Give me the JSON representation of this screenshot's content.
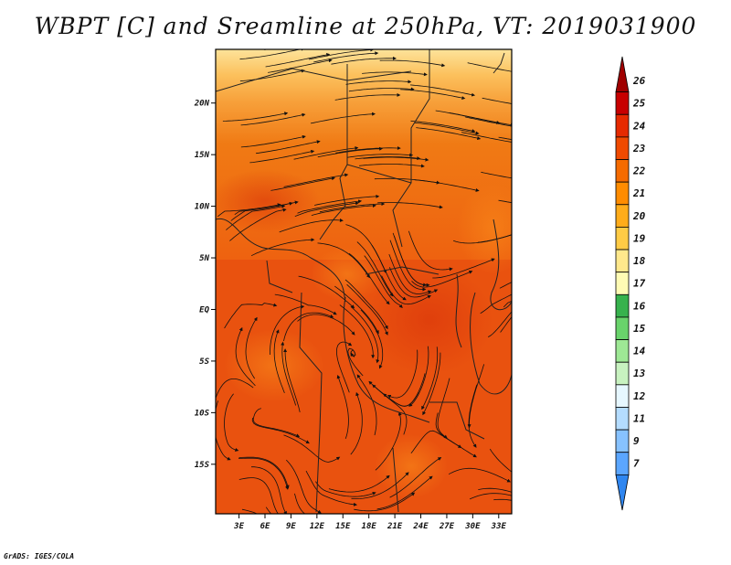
{
  "chart_data": {
    "type": "heatmap",
    "title": "WBPT [C] and Sreamline at 250hPa, VT: 2019031900",
    "variable": "WBPT [C]",
    "level": "250hPa",
    "valid_time": "2019031900",
    "overlay": "streamlines",
    "x_ticks": [
      "3E",
      "6E",
      "9E",
      "12E",
      "15E",
      "18E",
      "21E",
      "24E",
      "27E",
      "30E",
      "33E"
    ],
    "x_tick_values": [
      3,
      6,
      9,
      12,
      15,
      18,
      21,
      24,
      27,
      30,
      33
    ],
    "y_ticks": [
      "20N",
      "15N",
      "10N",
      "5N",
      "EQ",
      "5S",
      "10S",
      "15S"
    ],
    "y_tick_values": [
      20,
      15,
      10,
      5,
      0,
      -5,
      -10,
      -15
    ],
    "xlim": [
      0.3,
      34.5
    ],
    "ylim": [
      -19.8,
      25.2
    ],
    "colorbar": {
      "labels": [
        "26",
        "25",
        "24",
        "23",
        "22",
        "21",
        "20",
        "19",
        "18",
        "17",
        "16",
        "15",
        "14",
        "13",
        "12",
        "11",
        "9",
        "7"
      ],
      "colors": [
        "#a00000",
        "#c80000",
        "#e62a00",
        "#f04a00",
        "#f56b00",
        "#ff8c00",
        "#ffac1a",
        "#ffcb45",
        "#ffe88c",
        "#fffbb4",
        "#37b24d",
        "#69d36b",
        "#9ee895",
        "#c8f2c0",
        "#e6f7ff",
        "#b4dcff",
        "#87c2ff",
        "#5ba6ff",
        "#2f86f0"
      ]
    },
    "dominant_values": "mostly 23-24 C over the domain, 20-22 C in the far north"
  },
  "credit": "GrADS: IGES/COLA"
}
